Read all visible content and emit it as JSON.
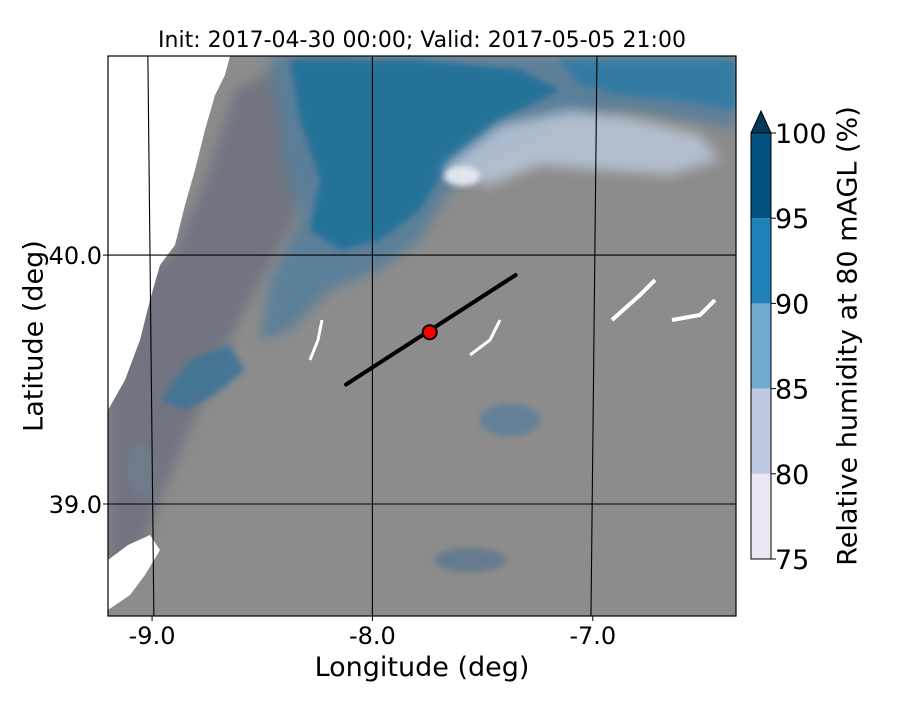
{
  "chart_data": {
    "type": "heatmap",
    "title": "Init: 2017-04-30 00:00; Valid: 2017-05-05 21:00",
    "xlabel": "Longitude (deg)",
    "ylabel": "Latitude (deg)",
    "xlim": [
      -9.2,
      -6.35
    ],
    "ylim": [
      38.55,
      40.8
    ],
    "x_ticks": [
      {
        "value": -9.0,
        "label": "-9.0"
      },
      {
        "value": -8.0,
        "label": "-8.0"
      },
      {
        "value": -7.0,
        "label": "-7.0"
      }
    ],
    "y_ticks": [
      {
        "value": 40.0,
        "label": "40.0"
      },
      {
        "value": 39.0,
        "label": "39.0"
      }
    ],
    "colorbar": {
      "label": "Relative humidity at 80 mAGL (%)",
      "levels": [
        75,
        80,
        85,
        90,
        95,
        100
      ],
      "tick_labels": [
        "75",
        "80",
        "85",
        "90",
        "95",
        "100"
      ],
      "colors": [
        "#ede7f3",
        "#bfc9e2",
        "#72a9cf",
        "#1f81b8",
        "#045280"
      ],
      "extend_color": "#023858",
      "below_range_color": "#8c8c8c"
    },
    "transect": {
      "start": {
        "lon": -8.12,
        "lat": 39.48
      },
      "end": {
        "lon": -7.35,
        "lat": 39.92
      },
      "color": "#000000"
    },
    "site": {
      "lon": -7.74,
      "lat": 39.69,
      "color": "#ff0000"
    }
  }
}
